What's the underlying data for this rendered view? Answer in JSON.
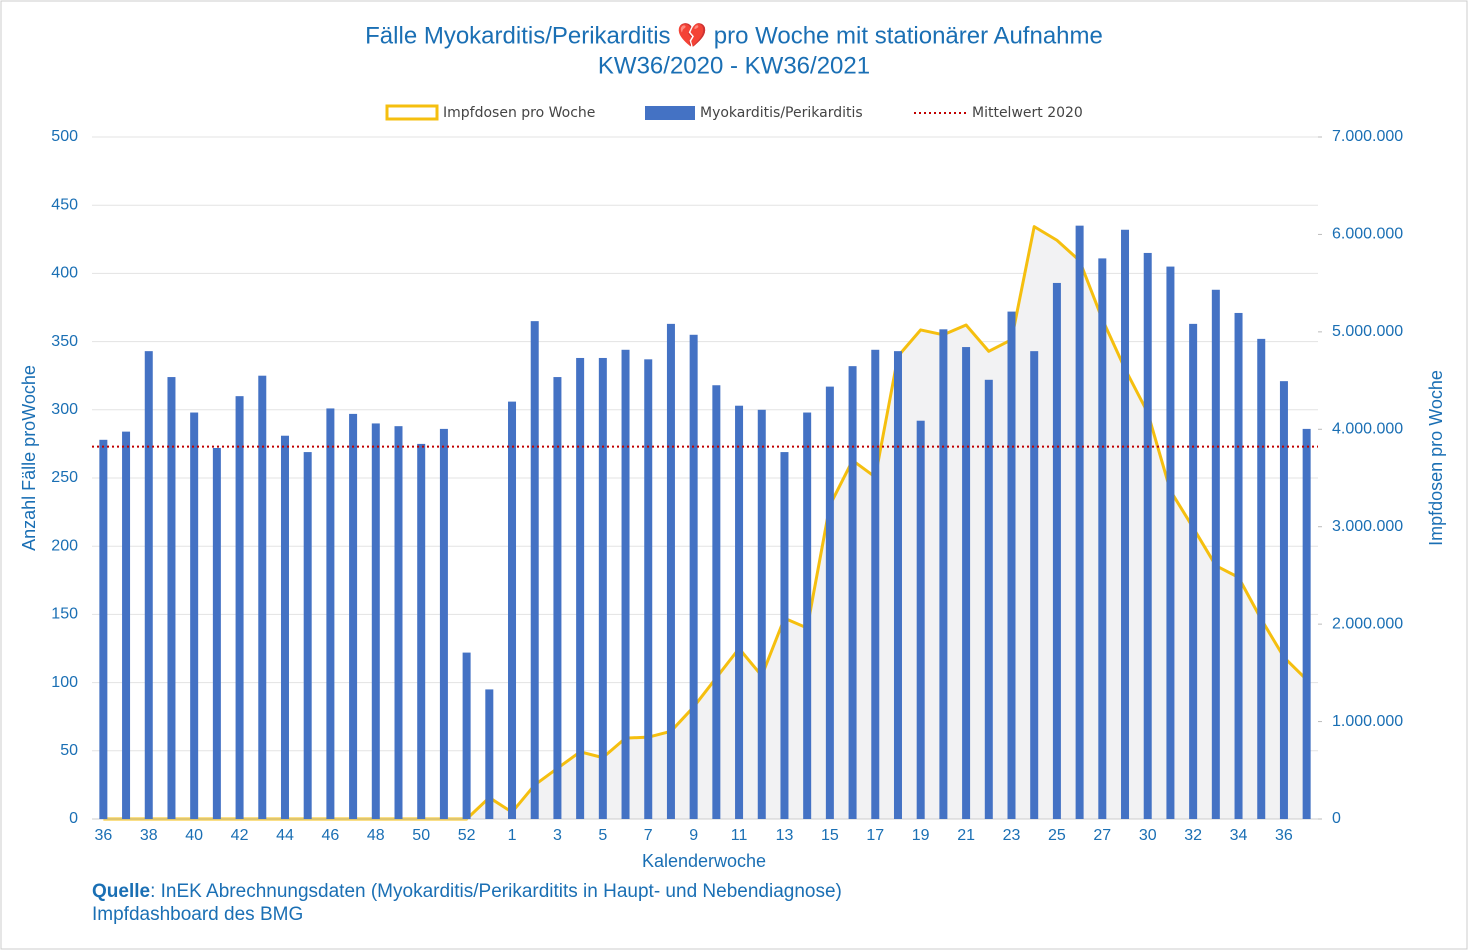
{
  "chart_data": {
    "type": "bar_line",
    "title": "Fälle Myokarditis/Perikarditis 💔 pro Woche mit stationärer Aufnahme",
    "subtitle": "KW36/2020 - KW36/2021",
    "x_label": "Kalenderwoche",
    "y_label": "Anzahl Fälle proWoche",
    "y2_label": "Impfdosen pro Woche",
    "categories": [
      "36",
      null,
      "38",
      null,
      "40",
      null,
      "42",
      null,
      "44",
      null,
      "46",
      null,
      "48",
      null,
      "50",
      null,
      "52",
      null,
      "1",
      null,
      "3",
      null,
      "5",
      null,
      "7",
      null,
      "9",
      null,
      "11",
      null,
      "13",
      null,
      "15",
      null,
      "17",
      null,
      "19",
      null,
      "21",
      null,
      "23",
      null,
      "25",
      null,
      "27",
      null,
      "30",
      null,
      "32",
      null,
      "34",
      null,
      "36",
      null
    ],
    "series": [
      {
        "name": "Impfdosen pro Woche",
        "color": "#f5bf0f",
        "area_color": "#f2f2f3",
        "axis": "y2",
        "values": [
          0,
          0,
          0,
          0,
          0,
          0,
          0,
          0,
          0,
          0,
          0,
          0,
          0,
          0,
          0,
          0,
          0,
          220000,
          70000,
          350000,
          520000,
          690000,
          630000,
          830000,
          840000,
          900000,
          1150000,
          1450000,
          1750000,
          1470000,
          2060000,
          1960000,
          3220000,
          3680000,
          3510000,
          4750000,
          5020000,
          4970000,
          5070000,
          4800000,
          4920000,
          6080000,
          5940000,
          5730000,
          5130000,
          4620000,
          4170000,
          3370000,
          2990000,
          2600000,
          2480000,
          2050000,
          1660000,
          1430000
        ]
      },
      {
        "name": "Myokarditis/Perikarditis",
        "color": "#4472c4",
        "values": [
          278,
          284,
          343,
          324,
          298,
          272,
          310,
          325,
          281,
          269,
          301,
          297,
          290,
          288,
          275,
          286,
          122,
          95,
          306,
          365,
          324,
          338,
          338,
          344,
          337,
          363,
          355,
          318,
          303,
          300,
          269,
          298,
          317,
          332,
          344,
          343,
          292,
          359,
          346,
          322,
          372,
          343,
          393,
          435,
          411,
          432,
          415,
          405,
          363,
          388,
          371,
          352,
          321,
          286
        ]
      }
    ],
    "mean_line": {
      "name": "Mittelwert 2020",
      "color": "#c00000",
      "value": 273
    },
    "ylim": [
      0,
      500
    ],
    "yticks": [
      0,
      50,
      100,
      150,
      200,
      250,
      300,
      350,
      400,
      450,
      500
    ],
    "y2lim": [
      0,
      7000000
    ],
    "y2ticks": [
      {
        "value": 0,
        "label": "0"
      },
      {
        "value": 1000000,
        "label": "1.000.000"
      },
      {
        "value": 2000000,
        "label": "2.000.000"
      },
      {
        "value": 3000000,
        "label": "3.000.000"
      },
      {
        "value": 4000000,
        "label": "4.000.000"
      },
      {
        "value": 5000000,
        "label": "5.000.000"
      },
      {
        "value": 6000000,
        "label": "6.000.000"
      },
      {
        "value": 7000000,
        "label": "7.000.000"
      }
    ],
    "grid": true,
    "source": {
      "label": "Quelle",
      "text": ": InEK Abrechnungsdaten (Myokarditis/Perikarditits in Haupt- und Nebendiagnose)",
      "line2": "Impfdashboard des BMG"
    }
  }
}
